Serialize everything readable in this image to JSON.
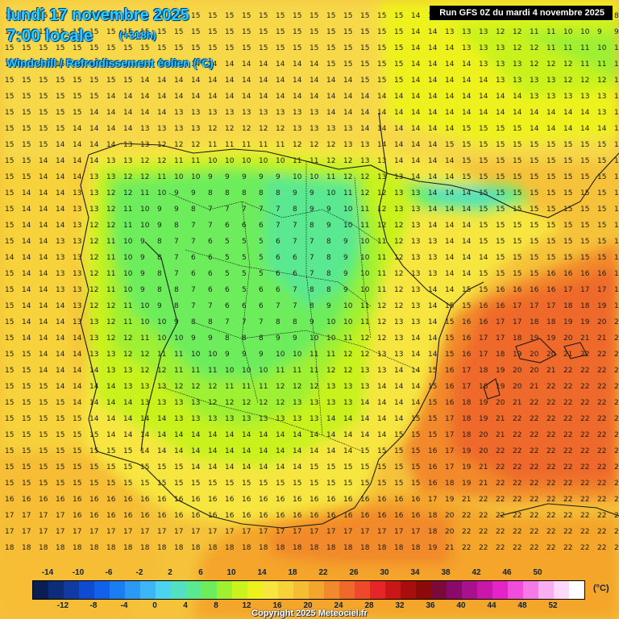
{
  "header": {
    "date": "lundi 17 novembre 2025",
    "hour": "7:00 locale",
    "offset": "(+318h)",
    "product": "Windchill / Refroidissement éolien (°C)",
    "run": "Run GFS 0Z du mardi 4 novembre 2025"
  },
  "legend": {
    "unit": "(°C)",
    "colors": [
      "#0a1e52",
      "#0d2c7a",
      "#123aa3",
      "#0f4bd0",
      "#1261ea",
      "#1b7df2",
      "#2a9af5",
      "#3db6f7",
      "#4bd3f0",
      "#52e0c0",
      "#5ae890",
      "#6ded5c",
      "#9ef030",
      "#c9f21f",
      "#eef21c",
      "#f7e640",
      "#f7d23a",
      "#f6bd34",
      "#f4a52c",
      "#f2892a",
      "#ef6a2a",
      "#ec4a2a",
      "#e62626",
      "#c91616",
      "#a80e0e",
      "#8c0a0a",
      "#7a0a3a",
      "#8a0a6a",
      "#a8108c",
      "#c818ac",
      "#e524c8",
      "#f04ddc",
      "#f57ae8",
      "#f9aef2",
      "#ffd8fb",
      "#ffffff"
    ],
    "ticks_top": [
      "-14",
      "-10",
      "-6",
      "-2",
      "2",
      "6",
      "10",
      "14",
      "18",
      "22",
      "26",
      "30",
      "34",
      "38",
      "42",
      "46",
      "50"
    ],
    "ticks_bottom": [
      "-12",
      "-8",
      "-4",
      "0",
      "4",
      "8",
      "12",
      "16",
      "20",
      "24",
      "28",
      "32",
      "36",
      "40",
      "44",
      "48",
      "52"
    ]
  },
  "footer": {
    "copyright": "Copyright 2025 Meteociel.fr"
  }
}
